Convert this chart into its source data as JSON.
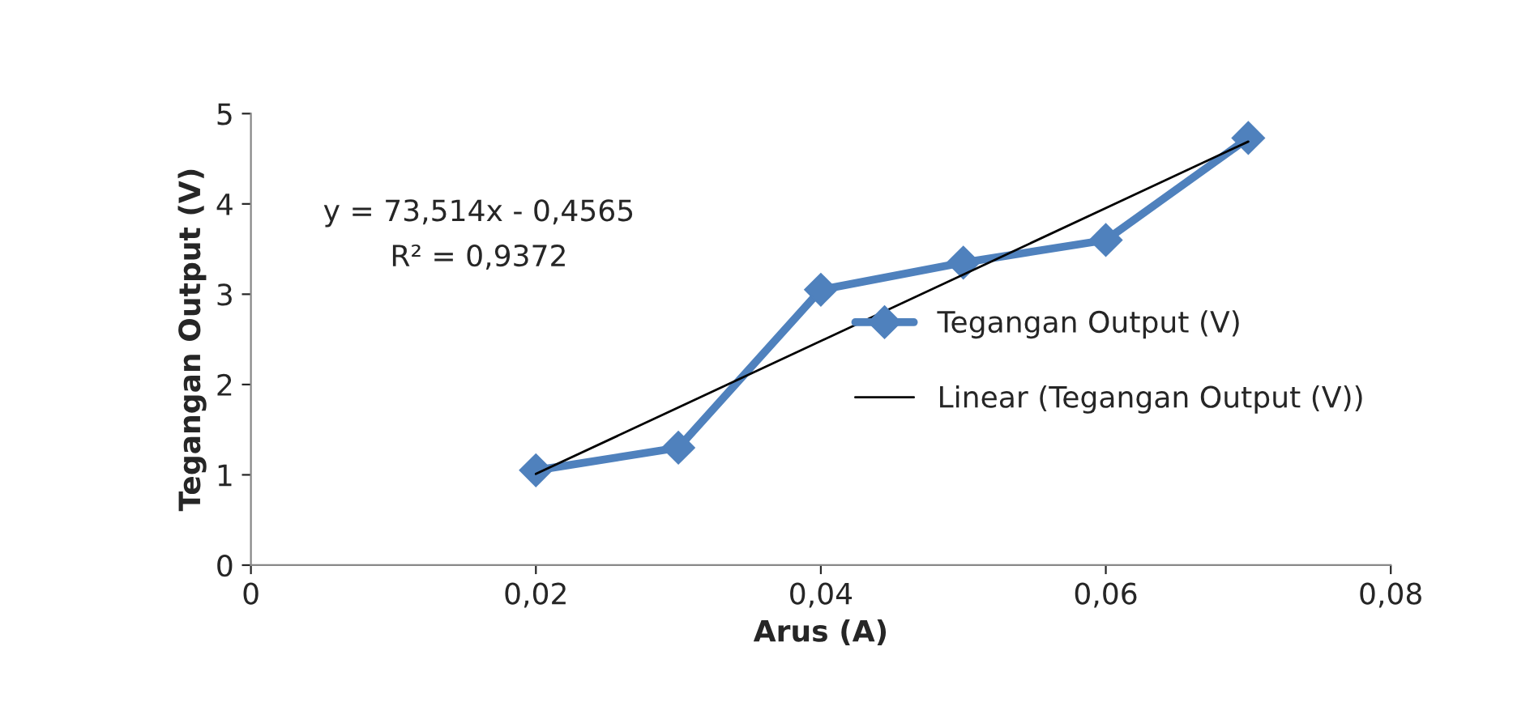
{
  "chart_data": {
    "type": "line",
    "xlabel": "Arus (A)",
    "ylabel": "Tegangan Output (V)",
    "x": [
      0.02,
      0.03,
      0.04,
      0.05,
      0.06,
      0.07
    ],
    "series": [
      {
        "name": "Tegangan Output (V)",
        "color": "#4f81bd",
        "values": [
          1.05,
          1.3,
          3.05,
          3.35,
          3.6,
          4.73
        ],
        "marker": "diamond",
        "line_style": "solid"
      },
      {
        "name": "Linear (Tegangan Output (V))",
        "color": "#000000",
        "x": [
          0.02,
          0.07
        ],
        "values": [
          1.01,
          4.69
        ],
        "marker": "none",
        "line_style": "solid"
      }
    ],
    "xlim": [
      0,
      0.08
    ],
    "xticks": [
      0,
      {
        "value": 0.02,
        "label": "0,02"
      },
      {
        "value": 0.04,
        "label": "0,04"
      },
      {
        "value": 0.06,
        "label": "0,06"
      },
      {
        "value": 0.08,
        "label": "0,08"
      }
    ],
    "ylim": [
      0,
      5
    ],
    "yticks": [
      0,
      1,
      2,
      3,
      4,
      5
    ],
    "annotations": [
      "y = 73,514x - 0,4565",
      "R² = 0,9372"
    ],
    "grid": false,
    "legend": "right"
  }
}
